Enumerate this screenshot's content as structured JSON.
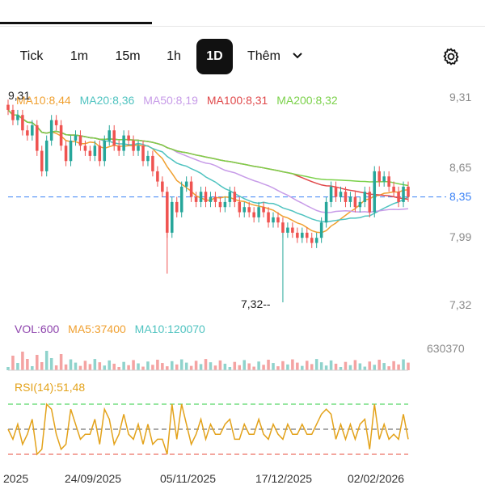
{
  "timeframes": [
    {
      "label": "Tick",
      "active": false
    },
    {
      "label": "1m",
      "active": false
    },
    {
      "label": "15m",
      "active": false
    },
    {
      "label": "1h",
      "active": false
    },
    {
      "label": "1D",
      "active": true
    }
  ],
  "more_label": "Thêm",
  "ma_legend": [
    {
      "text": "MA10:8,44",
      "color": "#f0a030"
    },
    {
      "text": "MA20:8,36",
      "color": "#4fc3c0"
    },
    {
      "text": "MA50:8,19",
      "color": "#c79be8"
    },
    {
      "text": "MA100:8,31",
      "color": "#e0484a"
    },
    {
      "text": "MA200:8,32",
      "color": "#7bd14a"
    }
  ],
  "price_axis": [
    "9,31",
    "8,65",
    "7,99",
    "7,32"
  ],
  "current_price": "8,35",
  "high_marker": "9,31",
  "low_marker": "7,32--",
  "vol_legend": [
    {
      "text": "VOL:600",
      "color": "#8e44ad"
    },
    {
      "text": "MA5:37400",
      "color": "#f0a030"
    },
    {
      "text": "MA10:120070",
      "color": "#4fc3c0"
    }
  ],
  "vol_axis": "630370",
  "rsi_legend": "RSI(14):51,48",
  "x_labels": [
    "2025",
    "24/09/2025",
    "05/11/2025",
    "17/12/2025",
    "02/02/2026"
  ],
  "colors": {
    "up": "#26a69a",
    "down": "#ef5350",
    "accent": "#111111",
    "price_line": "#3b82f6"
  },
  "icons": {
    "gear": "gear-icon",
    "more": "chevron-down-icon"
  },
  "chart_data": {
    "type": "candlestick",
    "ylim": [
      7.32,
      9.31
    ],
    "current": 8.35,
    "high": 9.31,
    "low": 7.32,
    "series_close": [
      9.2,
      9.1,
      9.15,
      9.0,
      8.95,
      9.05,
      8.8,
      8.6,
      8.9,
      9.1,
      9.05,
      8.85,
      8.7,
      8.9,
      8.95,
      8.85,
      8.8,
      8.75,
      8.85,
      8.7,
      8.9,
      9.0,
      8.85,
      8.8,
      8.95,
      8.9,
      8.8,
      8.85,
      8.7,
      8.75,
      8.6,
      8.5,
      8.4,
      8.0,
      8.3,
      8.2,
      8.45,
      8.5,
      8.35,
      8.3,
      8.4,
      8.3,
      8.35,
      8.3,
      8.25,
      8.3,
      8.4,
      8.3,
      8.2,
      8.25,
      8.2,
      8.15,
      8.25,
      8.2,
      8.1,
      8.15,
      8.1,
      8.0,
      8.05,
      8.0,
      7.95,
      8.0,
      7.95,
      7.9,
      7.95,
      8.1,
      8.3,
      8.45,
      8.35,
      8.4,
      8.3,
      8.35,
      8.25,
      8.3,
      8.4,
      8.2,
      8.6,
      8.5,
      8.55,
      8.45,
      8.4,
      8.3,
      8.45,
      8.35
    ]
  }
}
